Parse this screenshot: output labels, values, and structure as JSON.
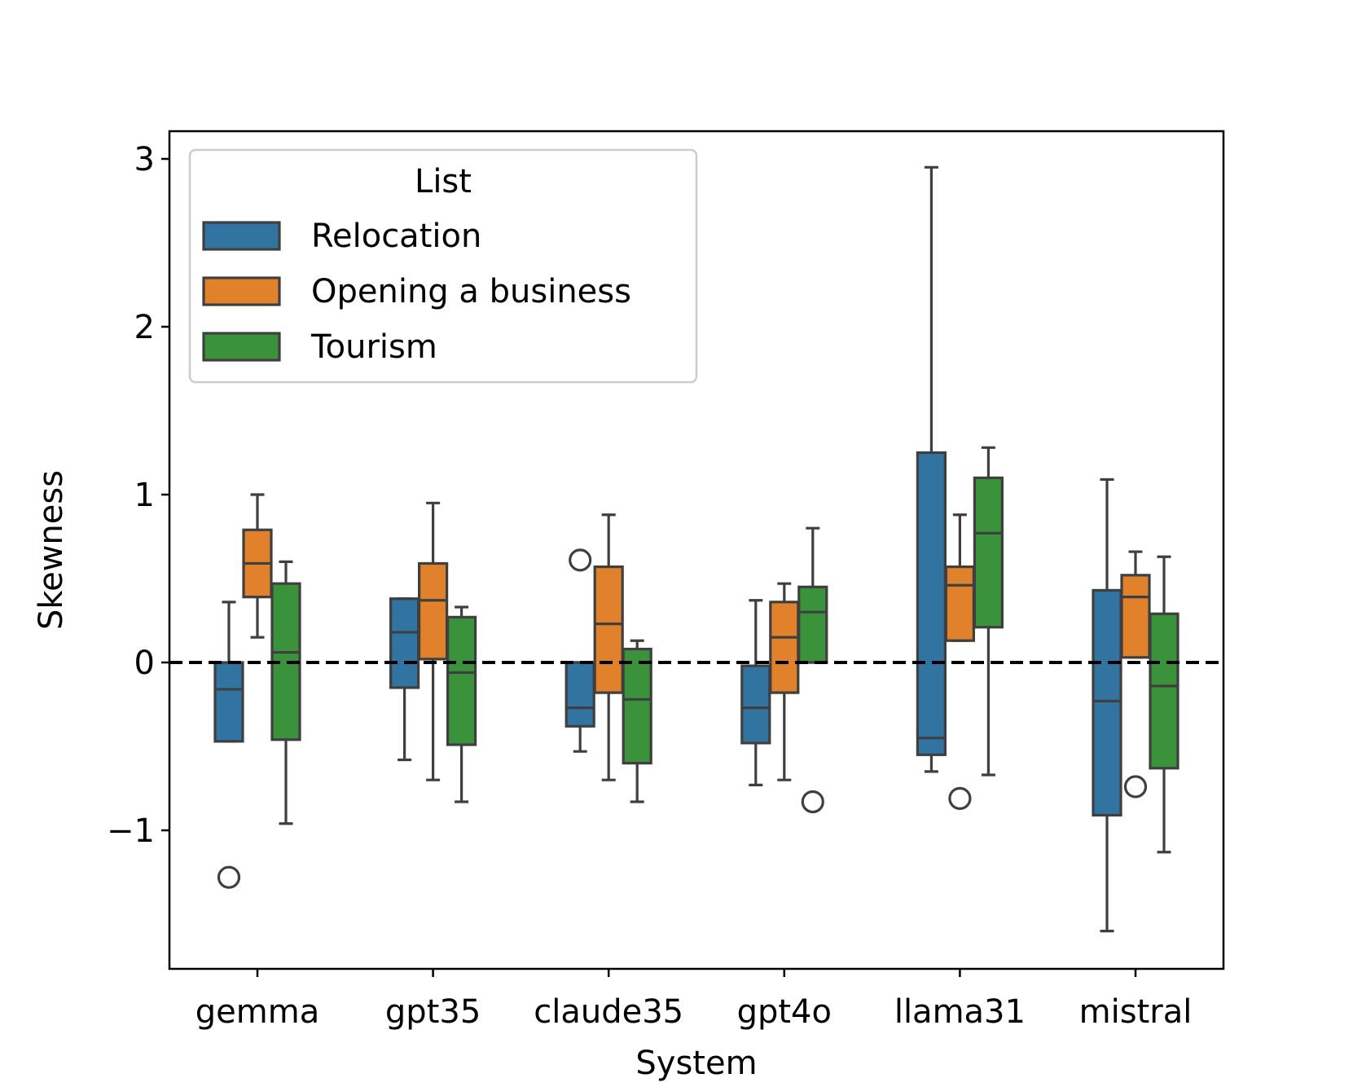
{
  "chart_data": {
    "type": "box",
    "xlabel": "System",
    "ylabel": "Skewness",
    "ylim": [
      -1.82,
      3.18
    ],
    "yticks": [
      -1,
      0,
      1,
      2,
      3
    ],
    "ytick_labels": [
      "−1",
      "0",
      "1",
      "2",
      "3"
    ],
    "categories": [
      "gemma",
      "gpt35",
      "claude35",
      "gpt4o",
      "llama31",
      "mistral"
    ],
    "reference_line": {
      "y": 0,
      "style": "dashed",
      "color": "#000000"
    },
    "legend": {
      "title": "List",
      "location": "upper-left"
    },
    "series": [
      {
        "name": "Relocation",
        "color": "#3274a1",
        "boxes": [
          {
            "whislo": -0.47,
            "q1": -0.47,
            "med": -0.16,
            "q3": 0.0,
            "whishi": 0.36,
            "fliers": [
              -1.28
            ]
          },
          {
            "whislo": -0.58,
            "q1": -0.15,
            "med": 0.18,
            "q3": 0.38,
            "whishi": 0.38,
            "fliers": []
          },
          {
            "whislo": -0.53,
            "q1": -0.38,
            "med": -0.27,
            "q3": 0.0,
            "whishi": 0.0,
            "fliers": [
              0.61
            ]
          },
          {
            "whislo": -0.73,
            "q1": -0.48,
            "med": -0.27,
            "q3": -0.02,
            "whishi": 0.37,
            "fliers": []
          },
          {
            "whislo": -0.65,
            "q1": -0.55,
            "med": -0.45,
            "q3": 1.25,
            "whishi": 2.95,
            "fliers": []
          },
          {
            "whislo": -1.6,
            "q1": -0.91,
            "med": -0.23,
            "q3": 0.43,
            "whishi": 1.09,
            "fliers": []
          }
        ]
      },
      {
        "name": "Opening a business",
        "color": "#e1812c",
        "boxes": [
          {
            "whislo": 0.15,
            "q1": 0.39,
            "med": 0.59,
            "q3": 0.79,
            "whishi": 1.0,
            "fliers": []
          },
          {
            "whislo": -0.7,
            "q1": 0.02,
            "med": 0.37,
            "q3": 0.59,
            "whishi": 0.95,
            "fliers": []
          },
          {
            "whislo": -0.7,
            "q1": -0.18,
            "med": 0.23,
            "q3": 0.57,
            "whishi": 0.88,
            "fliers": []
          },
          {
            "whislo": -0.7,
            "q1": -0.18,
            "med": 0.15,
            "q3": 0.36,
            "whishi": 0.47,
            "fliers": []
          },
          {
            "whislo": 0.13,
            "q1": 0.13,
            "med": 0.46,
            "q3": 0.57,
            "whishi": 0.88,
            "fliers": [
              -0.81
            ]
          },
          {
            "whislo": 0.03,
            "q1": 0.03,
            "med": 0.39,
            "q3": 0.52,
            "whishi": 0.66,
            "fliers": [
              -0.74
            ]
          }
        ]
      },
      {
        "name": "Tourism",
        "color": "#3a923a",
        "boxes": [
          {
            "whislo": -0.96,
            "q1": -0.46,
            "med": 0.06,
            "q3": 0.47,
            "whishi": 0.6,
            "fliers": []
          },
          {
            "whislo": -0.83,
            "q1": -0.49,
            "med": -0.06,
            "q3": 0.27,
            "whishi": 0.33,
            "fliers": []
          },
          {
            "whislo": -0.83,
            "q1": -0.6,
            "med": -0.22,
            "q3": 0.08,
            "whishi": 0.13,
            "fliers": []
          },
          {
            "whislo": 0.0,
            "q1": 0.0,
            "med": 0.3,
            "q3": 0.45,
            "whishi": 0.8,
            "fliers": [
              -0.83
            ]
          },
          {
            "whislo": -0.67,
            "q1": 0.21,
            "med": 0.77,
            "q3": 1.1,
            "whishi": 1.28,
            "fliers": []
          },
          {
            "whislo": -1.13,
            "q1": -0.63,
            "med": -0.14,
            "q3": 0.29,
            "whishi": 0.63,
            "fliers": []
          }
        ]
      }
    ]
  }
}
